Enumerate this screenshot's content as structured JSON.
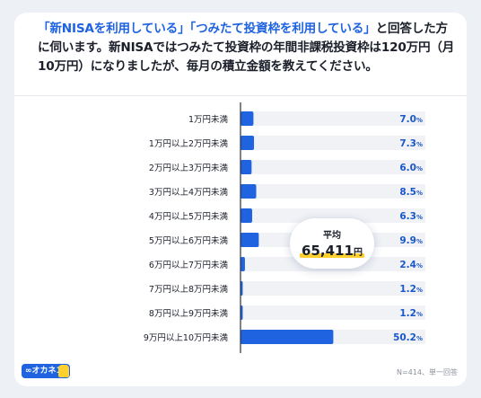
{
  "question": {
    "q1": "「新NISAを利用している」",
    "q2": "「つみたて投資枠を利用している」",
    "q3": "と回答した方に伺います。新NISAではつみたて投資枠の年間非課税投資枠は120万円（月10万円）になりましたが、毎月の積立金額を教えてください。"
  },
  "average": {
    "label": "平均",
    "value": "65,411",
    "unit": "円"
  },
  "note": "N=414、単一回答",
  "logo": {
    "text": "∞オカネコ",
    "mascot": "mascot-icon"
  },
  "colors": {
    "bar": "#1f63e0",
    "track": "#f0f2f6",
    "value": "#1a57c9"
  },
  "chart_data": {
    "type": "bar",
    "orientation": "horizontal",
    "categories": [
      "1万円未満",
      "1万円以上2万円未満",
      "2万円以上3万円未満",
      "3万円以上4万円未満",
      "4万円以上5万円未満",
      "5万円以上6万円未満",
      "6万円以上7万円未満",
      "7万円以上8万円未満",
      "8万円以上9万円未満",
      "9万円以上10万円未満"
    ],
    "values": [
      7.0,
      7.3,
      6.0,
      8.5,
      6.3,
      9.9,
      2.4,
      1.2,
      1.2,
      50.2
    ],
    "value_labels": [
      "7.0",
      "7.3",
      "6.0",
      "8.5",
      "6.3",
      "9.9",
      "2.4",
      "1.2",
      "1.2",
      "50.2"
    ],
    "value_suffix": "%",
    "xlim": [
      0,
      100
    ]
  }
}
